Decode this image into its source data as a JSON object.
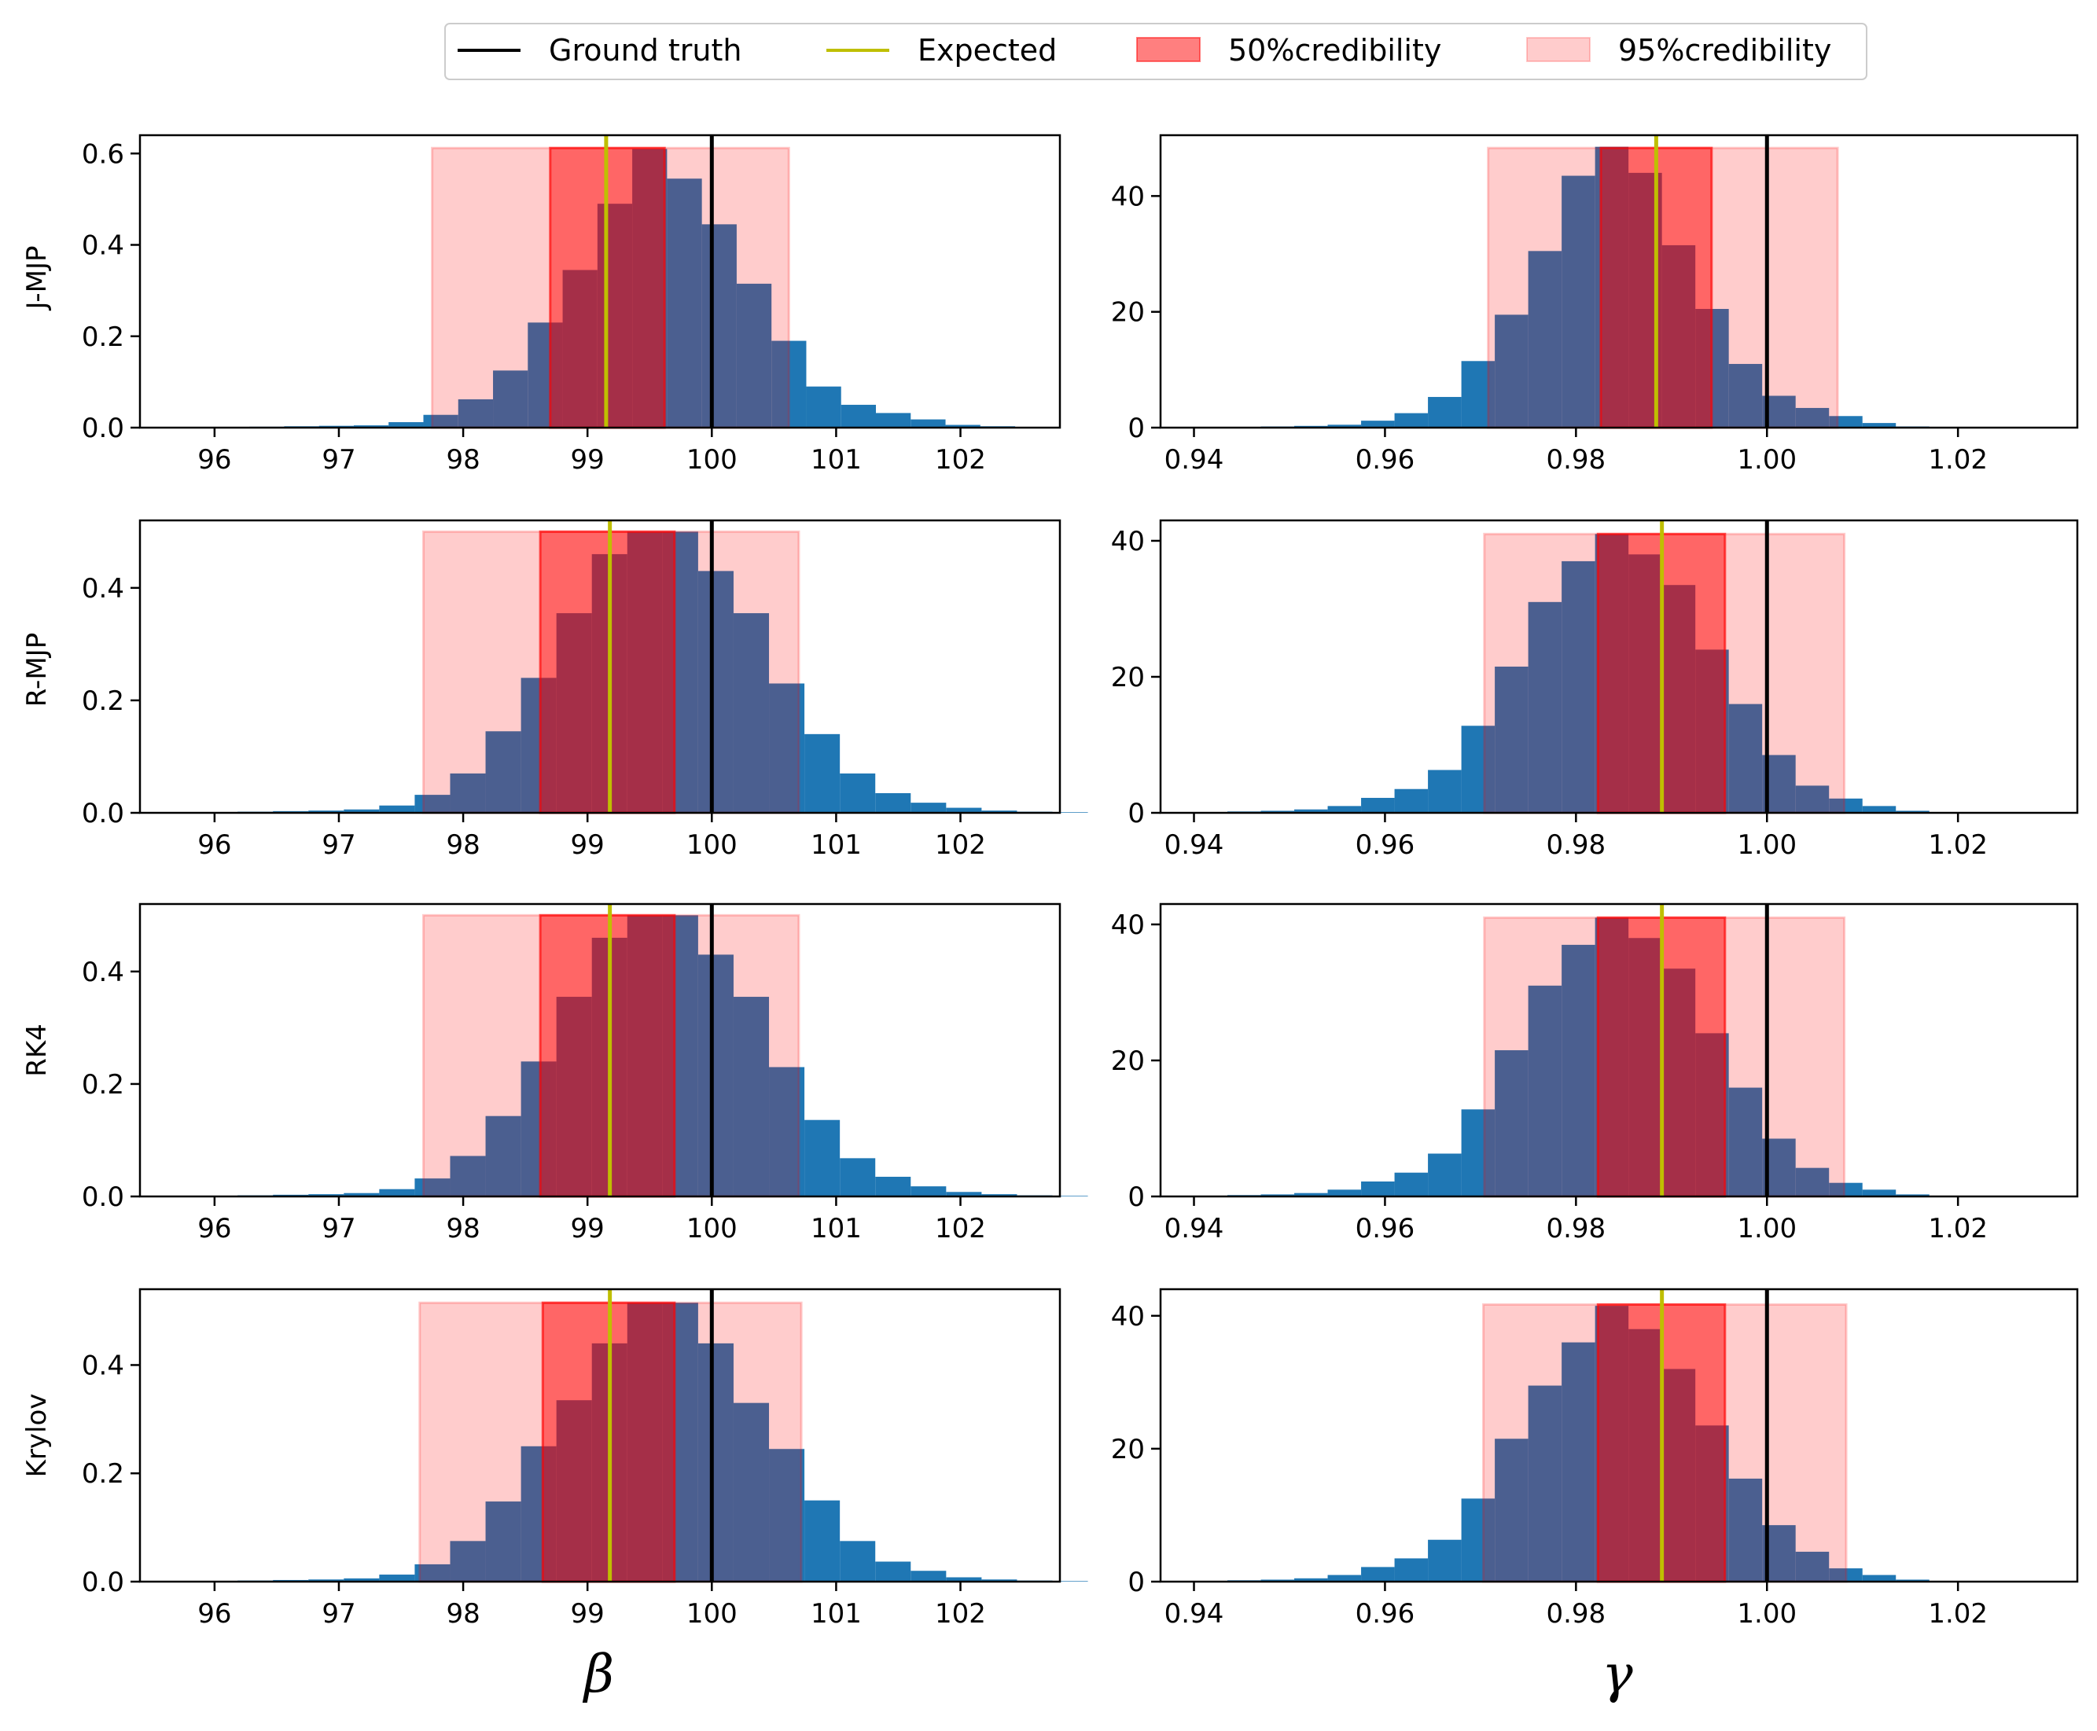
{
  "legend": {
    "ground_truth": "Ground truth",
    "expected": "Expected",
    "cred50": "50%credibility",
    "cred95": "95%credibility"
  },
  "colors": {
    "hist": "#1f77b4",
    "ground_truth": "#000000",
    "expected": "#bfbf00",
    "cred_fill": "#ff0000"
  },
  "row_labels": [
    "J-MJP",
    "R-MJP",
    "RK4",
    "Krylov"
  ],
  "col_labels": [
    "β",
    "γ"
  ],
  "chart_data": [
    {
      "type": "bar",
      "title": "",
      "row": "J-MJP",
      "param": "β",
      "xlabel": "",
      "ylabel": "J-MJP",
      "xlim": [
        95.4,
        102.8
      ],
      "ylim": [
        0,
        0.64
      ],
      "xticks": [
        96,
        97,
        98,
        99,
        100,
        101,
        102
      ],
      "xtick_labels": [
        "96",
        "97",
        "98",
        "99",
        "100",
        "101",
        "102"
      ],
      "yticks": [
        0,
        0.2,
        0.4,
        0.6
      ],
      "ytick_labels": [
        "0.0",
        "0.2",
        "0.4",
        "0.6"
      ],
      "bins_start": 96.0,
      "bin_width": 0.28,
      "values": [
        0.001,
        0.002,
        0.003,
        0.004,
        0.005,
        0.012,
        0.028,
        0.062,
        0.125,
        0.23,
        0.345,
        0.49,
        0.61,
        0.545,
        0.445,
        0.315,
        0.19,
        0.09,
        0.05,
        0.032,
        0.018,
        0.006,
        0.003,
        0.001
      ],
      "ground_truth": 100.0,
      "expected": 99.15,
      "ci50": [
        98.7,
        99.62
      ],
      "ci95": [
        97.75,
        100.62
      ],
      "band_top": 0.612
    },
    {
      "type": "bar",
      "title": "",
      "row": "J-MJP",
      "param": "γ",
      "xlabel": "",
      "ylabel": "",
      "xlim": [
        0.9365,
        1.0325
      ],
      "ylim": [
        0,
        50.5
      ],
      "xticks": [
        0.94,
        0.96,
        0.98,
        1.0,
        1.02
      ],
      "xtick_labels": [
        "0.94",
        "0.96",
        "0.98",
        "1.00",
        "1.02"
      ],
      "yticks": [
        0,
        20,
        40
      ],
      "ytick_labels": [
        "0",
        "20",
        "40"
      ],
      "bins_start": 0.94,
      "bin_width": 0.0035,
      "values": [
        0.1,
        0.1,
        0.2,
        0.3,
        0.5,
        1.2,
        2.5,
        5.3,
        11.5,
        19.5,
        30.5,
        43.5,
        48.5,
        44.0,
        31.5,
        20.5,
        11.0,
        5.5,
        3.4,
        2.0,
        0.8,
        0.2,
        0.1,
        0.05
      ],
      "ground_truth": 1.0,
      "expected": 0.9884,
      "ci50": [
        0.9826,
        0.9942
      ],
      "ci95": [
        0.9708,
        1.0074
      ],
      "band_top": 48.3
    },
    {
      "type": "bar",
      "title": "",
      "row": "R-MJP",
      "param": "β",
      "xlabel": "",
      "ylabel": "R-MJP",
      "xlim": [
        95.4,
        102.8
      ],
      "ylim": [
        0,
        0.52
      ],
      "xticks": [
        96,
        97,
        98,
        99,
        100,
        101,
        102
      ],
      "xtick_labels": [
        "96",
        "97",
        "98",
        "99",
        "100",
        "101",
        "102"
      ],
      "yticks": [
        0,
        0.2,
        0.4
      ],
      "ytick_labels": [
        "0.0",
        "0.2",
        "0.4"
      ],
      "bins_start": 95.9,
      "bin_width": 0.285,
      "values": [
        0.001,
        0.002,
        0.003,
        0.004,
        0.006,
        0.013,
        0.032,
        0.07,
        0.145,
        0.24,
        0.355,
        0.46,
        0.5,
        0.5,
        0.43,
        0.355,
        0.23,
        0.14,
        0.07,
        0.035,
        0.018,
        0.009,
        0.004,
        0.002,
        0.001
      ],
      "ground_truth": 100.0,
      "expected": 99.18,
      "ci50": [
        98.62,
        99.7
      ],
      "ci95": [
        97.68,
        100.7
      ],
      "band_top": 0.5
    },
    {
      "type": "bar",
      "title": "",
      "row": "R-MJP",
      "param": "γ",
      "xlabel": "",
      "ylabel": "",
      "xlim": [
        0.9365,
        1.0325
      ],
      "ylim": [
        0,
        43
      ],
      "xticks": [
        0.94,
        0.96,
        0.98,
        1.0,
        1.02
      ],
      "xtick_labels": [
        "0.94",
        "0.96",
        "0.98",
        "1.00",
        "1.02"
      ],
      "yticks": [
        0,
        20,
        40
      ],
      "ytick_labels": [
        "0",
        "20",
        "40"
      ],
      "bins_start": 0.94,
      "bin_width": 0.0035,
      "values": [
        0.1,
        0.2,
        0.3,
        0.5,
        1.0,
        2.2,
        3.5,
        6.3,
        12.8,
        21.5,
        31.0,
        37.0,
        41.0,
        38.0,
        33.5,
        24.0,
        16.0,
        8.5,
        4.0,
        2.1,
        1.0,
        0.3,
        0.1,
        0.05
      ],
      "ground_truth": 1.0,
      "expected": 0.989,
      "ci50": [
        0.9823,
        0.9956
      ],
      "ci95": [
        0.9704,
        1.0081
      ],
      "band_top": 41.0
    },
    {
      "type": "bar",
      "title": "",
      "row": "RK4",
      "param": "β",
      "xlabel": "",
      "ylabel": "RK4",
      "xlim": [
        95.4,
        102.8
      ],
      "ylim": [
        0,
        0.52
      ],
      "xticks": [
        96,
        97,
        98,
        99,
        100,
        101,
        102
      ],
      "xtick_labels": [
        "96",
        "97",
        "98",
        "99",
        "100",
        "101",
        "102"
      ],
      "yticks": [
        0,
        0.2,
        0.4
      ],
      "ytick_labels": [
        "0.0",
        "0.2",
        "0.4"
      ],
      "bins_start": 95.9,
      "bin_width": 0.285,
      "values": [
        0.001,
        0.002,
        0.003,
        0.004,
        0.006,
        0.013,
        0.032,
        0.072,
        0.143,
        0.24,
        0.355,
        0.46,
        0.5,
        0.5,
        0.43,
        0.355,
        0.23,
        0.136,
        0.068,
        0.035,
        0.018,
        0.008,
        0.004,
        0.002,
        0.001
      ],
      "ground_truth": 100.0,
      "expected": 99.18,
      "ci50": [
        98.62,
        99.7
      ],
      "ci95": [
        97.68,
        100.7
      ],
      "band_top": 0.5
    },
    {
      "type": "bar",
      "title": "",
      "row": "RK4",
      "param": "γ",
      "xlabel": "",
      "ylabel": "",
      "xlim": [
        0.9365,
        1.0325
      ],
      "ylim": [
        0,
        43
      ],
      "xticks": [
        0.94,
        0.96,
        0.98,
        1.0,
        1.02
      ],
      "xtick_labels": [
        "0.94",
        "0.96",
        "0.98",
        "1.00",
        "1.02"
      ],
      "yticks": [
        0,
        20,
        40
      ],
      "ytick_labels": [
        "0",
        "20",
        "40"
      ],
      "bins_start": 0.94,
      "bin_width": 0.0035,
      "values": [
        0.1,
        0.2,
        0.3,
        0.5,
        1.0,
        2.2,
        3.5,
        6.3,
        12.8,
        21.5,
        31.0,
        37.0,
        41.0,
        38.0,
        33.5,
        24.0,
        16.0,
        8.5,
        4.2,
        2.0,
        1.0,
        0.3,
        0.1,
        0.05
      ],
      "ground_truth": 1.0,
      "expected": 0.989,
      "ci50": [
        0.9823,
        0.9956
      ],
      "ci95": [
        0.9704,
        1.0081
      ],
      "band_top": 41.0
    },
    {
      "type": "bar",
      "title": "",
      "row": "Krylov",
      "param": "β",
      "xlabel": "β",
      "ylabel": "Krylov",
      "xlim": [
        95.4,
        102.8
      ],
      "ylim": [
        0,
        0.54
      ],
      "xticks": [
        96,
        97,
        98,
        99,
        100,
        101,
        102
      ],
      "xtick_labels": [
        "96",
        "97",
        "98",
        "99",
        "100",
        "101",
        "102"
      ],
      "yticks": [
        0,
        0.2,
        0.4
      ],
      "ytick_labels": [
        "0.0",
        "0.2",
        "0.4"
      ],
      "bins_start": 95.9,
      "bin_width": 0.285,
      "values": [
        0.001,
        0.002,
        0.003,
        0.004,
        0.006,
        0.013,
        0.032,
        0.075,
        0.148,
        0.25,
        0.335,
        0.44,
        0.515,
        0.515,
        0.44,
        0.33,
        0.245,
        0.15,
        0.075,
        0.037,
        0.02,
        0.008,
        0.004,
        0.002,
        0.001
      ],
      "ground_truth": 100.0,
      "expected": 99.18,
      "ci50": [
        98.64,
        99.7
      ],
      "ci95": [
        97.65,
        100.72
      ],
      "band_top": 0.515
    },
    {
      "type": "bar",
      "title": "",
      "row": "Krylov",
      "param": "γ",
      "xlabel": "γ",
      "ylabel": "",
      "xlim": [
        0.9365,
        1.0325
      ],
      "ylim": [
        0,
        44
      ],
      "xticks": [
        0.94,
        0.96,
        0.98,
        1.0,
        1.02
      ],
      "xtick_labels": [
        "0.94",
        "0.96",
        "0.98",
        "1.00",
        "1.02"
      ],
      "yticks": [
        0,
        20,
        40
      ],
      "ytick_labels": [
        "0",
        "20",
        "40"
      ],
      "bins_start": 0.94,
      "bin_width": 0.0035,
      "values": [
        0.1,
        0.2,
        0.3,
        0.5,
        1.0,
        2.2,
        3.5,
        6.3,
        12.5,
        21.5,
        29.5,
        36.0,
        41.5,
        38.0,
        32.0,
        23.5,
        15.5,
        8.5,
        4.5,
        2.0,
        1.0,
        0.3,
        0.1,
        0.05
      ],
      "ground_truth": 1.0,
      "expected": 0.989,
      "ci50": [
        0.9823,
        0.9956
      ],
      "ci95": [
        0.9703,
        1.0083
      ],
      "band_top": 41.7
    }
  ]
}
